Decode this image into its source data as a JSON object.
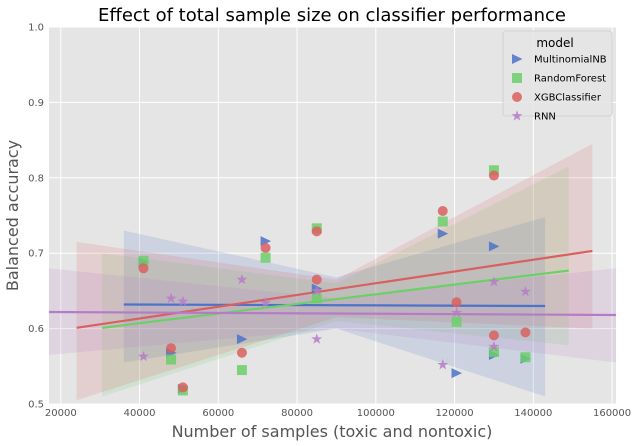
{
  "chart_data": {
    "type": "scatter",
    "title": "Effect of total sample size on classifier performance",
    "xlabel": "Number of samples (toxic and nontoxic)",
    "ylabel": "Balanced accuracy",
    "xlim": [
      17000,
      161000
    ],
    "ylim": [
      0.5,
      1.0
    ],
    "xticks": [
      20000,
      40000,
      60000,
      80000,
      100000,
      120000,
      140000,
      160000
    ],
    "yticks": [
      0.5,
      0.6,
      0.7,
      0.8,
      0.9,
      1.0
    ],
    "grid": true,
    "legend": {
      "title": "model",
      "placement": "top-right"
    },
    "series": [
      {
        "name": "MultinomialNB",
        "color": "#4c72c9",
        "marker": "triangle-right",
        "points": [
          [
            41000,
            0.688
          ],
          [
            48000,
            0.568
          ],
          [
            51000,
            0.52
          ],
          [
            66000,
            0.586
          ],
          [
            72000,
            0.716
          ],
          [
            85000,
            0.653
          ],
          [
            117000,
            0.726
          ],
          [
            120500,
            0.541
          ],
          [
            130000,
            0.709
          ],
          [
            130000,
            0.565
          ],
          [
            138000,
            0.56
          ]
        ],
        "fit": {
          "x": [
            36000,
            143000
          ],
          "y": [
            0.632,
            0.63
          ]
        },
        "ci": {
          "x": [
            36000,
            90000,
            143000
          ],
          "lower": [
            0.555,
            0.6,
            0.51
          ],
          "upper": [
            0.73,
            0.668,
            0.748
          ]
        }
      },
      {
        "name": "RandomForest",
        "color": "#6ccf68",
        "marker": "square",
        "points": [
          [
            41000,
            0.69
          ],
          [
            48000,
            0.559
          ],
          [
            51000,
            0.518
          ],
          [
            66000,
            0.545
          ],
          [
            72000,
            0.694
          ],
          [
            85000,
            0.733
          ],
          [
            85000,
            0.64
          ],
          [
            117000,
            0.742
          ],
          [
            120500,
            0.609
          ],
          [
            130000,
            0.81
          ],
          [
            130000,
            0.569
          ],
          [
            138000,
            0.562
          ]
        ],
        "fit": {
          "x": [
            30500,
            149000
          ],
          "y": [
            0.601,
            0.677
          ]
        },
        "ci": {
          "x": [
            30500,
            90000,
            149000
          ],
          "lower": [
            0.51,
            0.61,
            0.578
          ],
          "upper": [
            0.7,
            0.66,
            0.815
          ]
        }
      },
      {
        "name": "XGBClassifier",
        "color": "#d9605f",
        "marker": "circle",
        "points": [
          [
            41000,
            0.68
          ],
          [
            48000,
            0.574
          ],
          [
            51000,
            0.522
          ],
          [
            66000,
            0.568
          ],
          [
            72000,
            0.707
          ],
          [
            85000,
            0.729
          ],
          [
            85000,
            0.665
          ],
          [
            117000,
            0.756
          ],
          [
            120500,
            0.635
          ],
          [
            130000,
            0.803
          ],
          [
            130000,
            0.591
          ],
          [
            138000,
            0.595
          ]
        ],
        "fit": {
          "x": [
            24000,
            155000
          ],
          "y": [
            0.601,
            0.703
          ]
        },
        "ci": {
          "x": [
            24000,
            90000,
            155000
          ],
          "lower": [
            0.505,
            0.615,
            0.6
          ],
          "upper": [
            0.715,
            0.665,
            0.845
          ]
        }
      },
      {
        "name": "RNN",
        "color": "#b47cc7",
        "marker": "star",
        "points": [
          [
            41000,
            0.563
          ],
          [
            48000,
            0.64
          ],
          [
            51000,
            0.636
          ],
          [
            66000,
            0.665
          ],
          [
            72000,
            0.634
          ],
          [
            85000,
            0.586
          ],
          [
            85000,
            0.65
          ],
          [
            117000,
            0.552
          ],
          [
            120500,
            0.621
          ],
          [
            130000,
            0.662
          ],
          [
            130000,
            0.576
          ],
          [
            138000,
            0.649
          ]
        ],
        "fit": {
          "x": [
            17000,
            161000
          ],
          "y": [
            0.622,
            0.618
          ]
        },
        "ci": {
          "x": [
            17000,
            90000,
            161000
          ],
          "lower": [
            0.565,
            0.6,
            0.555
          ],
          "upper": [
            0.68,
            0.64,
            0.68
          ]
        }
      }
    ]
  }
}
